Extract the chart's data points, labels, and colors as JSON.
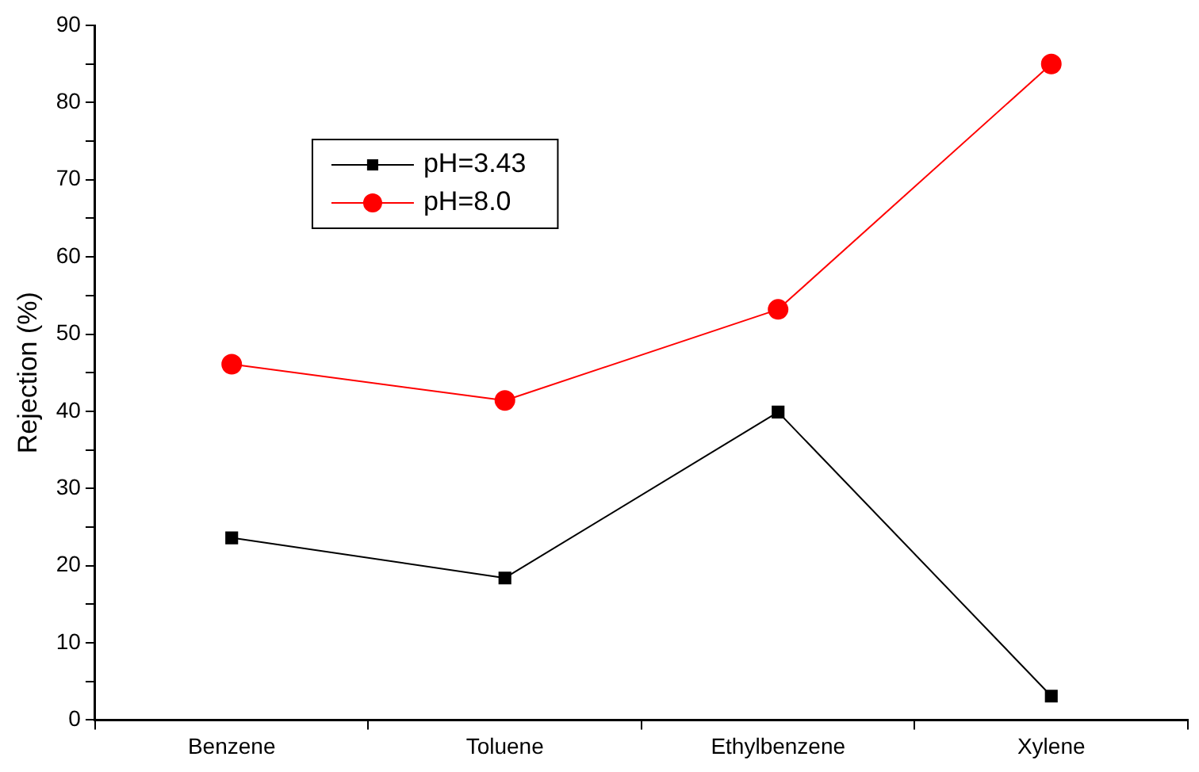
{
  "chart_data": {
    "type": "line",
    "ylabel": "Rejection (%)",
    "categories": [
      "Benzene",
      "Toluene",
      "Ethylbenzene",
      "Xylene"
    ],
    "series": [
      {
        "name": "pH=3.43",
        "color": "#000000",
        "marker": "square",
        "values": [
          23.6,
          18.4,
          39.9,
          3.1
        ]
      },
      {
        "name": "pH=8.0",
        "color": "#ff0000",
        "marker": "circle",
        "values": [
          46.1,
          41.4,
          53.2,
          85.0
        ]
      }
    ],
    "ylim": [
      0,
      90
    ],
    "yticks": [
      0,
      {
        "value": 5,
        "label": null
      },
      10,
      {
        "value": 15,
        "label": null
      },
      20,
      {
        "value": 25,
        "label": null
      },
      30,
      {
        "value": 35,
        "label": null
      },
      40,
      {
        "value": 45,
        "label": null
      },
      50,
      {
        "value": 55,
        "label": null
      },
      60,
      {
        "value": 65,
        "label": null
      },
      70,
      {
        "value": 75,
        "label": null
      },
      80,
      {
        "value": 85,
        "label": null
      },
      90
    ],
    "grid": false,
    "legend": "top left",
    "line_style": "solid"
  }
}
